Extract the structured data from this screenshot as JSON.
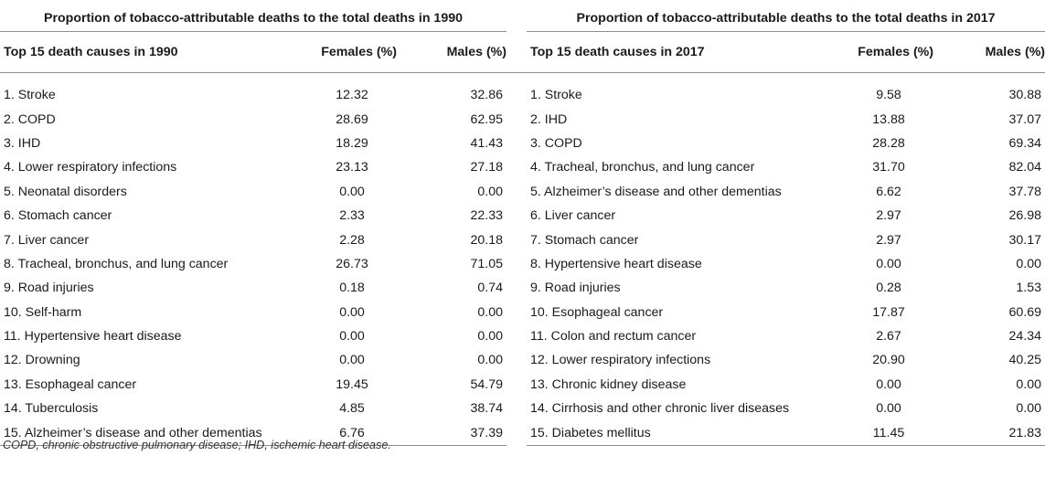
{
  "left": {
    "title": "Proportion of tobacco-attributable deaths to the total deaths in 1990",
    "col_name": "Top 15 death causes in 1990",
    "col_females": "Females (%)",
    "col_males": "Males (%)",
    "rows": [
      {
        "name": "1. Stroke",
        "females": "12.32",
        "males": "32.86"
      },
      {
        "name": "2. COPD",
        "females": "28.69",
        "males": "62.95"
      },
      {
        "name": "3. IHD",
        "females": "18.29",
        "males": "41.43"
      },
      {
        "name": "4. Lower respiratory infections",
        "females": "23.13",
        "males": "27.18"
      },
      {
        "name": "5. Neonatal disorders",
        "females": "0.00",
        "males": "0.00"
      },
      {
        "name": "6. Stomach cancer",
        "females": "2.33",
        "males": "22.33"
      },
      {
        "name": "7. Liver cancer",
        "females": "2.28",
        "males": "20.18"
      },
      {
        "name": "8. Tracheal, bronchus, and lung cancer",
        "females": "26.73",
        "males": "71.05"
      },
      {
        "name": "9. Road injuries",
        "females": "0.18",
        "males": "0.74"
      },
      {
        "name": "10. Self-harm",
        "females": "0.00",
        "males": "0.00"
      },
      {
        "name": "11. Hypertensive heart disease",
        "females": "0.00",
        "males": "0.00"
      },
      {
        "name": "12. Drowning",
        "females": "0.00",
        "males": "0.00"
      },
      {
        "name": "13. Esophageal cancer",
        "females": "19.45",
        "males": "54.79"
      },
      {
        "name": "14. Tuberculosis",
        "females": "4.85",
        "males": "38.74"
      },
      {
        "name": "15. Alzheimer’s disease and other dementias",
        "females": "6.76",
        "males": "37.39"
      }
    ]
  },
  "right": {
    "title": "Proportion of tobacco-attributable deaths to the total deaths in 2017",
    "col_name": "Top 15 death causes in 2017",
    "col_females": "Females (%)",
    "col_males": "Males (%)",
    "rows": [
      {
        "name": "1. Stroke",
        "females": "9.58",
        "males": "30.88"
      },
      {
        "name": "2. IHD",
        "females": "13.88",
        "males": "37.07"
      },
      {
        "name": "3. COPD",
        "females": "28.28",
        "males": "69.34"
      },
      {
        "name": "4. Tracheal, bronchus, and lung cancer",
        "females": "31.70",
        "males": "82.04"
      },
      {
        "name": "5. Alzheimer’s disease and other dementias",
        "females": "6.62",
        "males": "37.78"
      },
      {
        "name": "6. Liver cancer",
        "females": "2.97",
        "males": "26.98"
      },
      {
        "name": "7. Stomach cancer",
        "females": "2.97",
        "males": "30.17"
      },
      {
        "name": "8. Hypertensive heart disease",
        "females": "0.00",
        "males": "0.00"
      },
      {
        "name": "9. Road injuries",
        "females": "0.28",
        "males": "1.53"
      },
      {
        "name": "10. Esophageal cancer",
        "females": "17.87",
        "males": "60.69"
      },
      {
        "name": "11. Colon and rectum cancer",
        "females": "2.67",
        "males": "24.34"
      },
      {
        "name": "12. Lower respiratory infections",
        "females": "20.90",
        "males": "40.25"
      },
      {
        "name": "13. Chronic kidney disease",
        "females": "0.00",
        "males": "0.00"
      },
      {
        "name": "14. Cirrhosis and other chronic liver diseases",
        "females": "0.00",
        "males": "0.00"
      },
      {
        "name": "15. Diabetes mellitus",
        "females": "11.45",
        "males": "21.83"
      }
    ]
  },
  "footnote": "COPD, chronic obstructive pulmonary disease; IHD, ischemic heart disease."
}
